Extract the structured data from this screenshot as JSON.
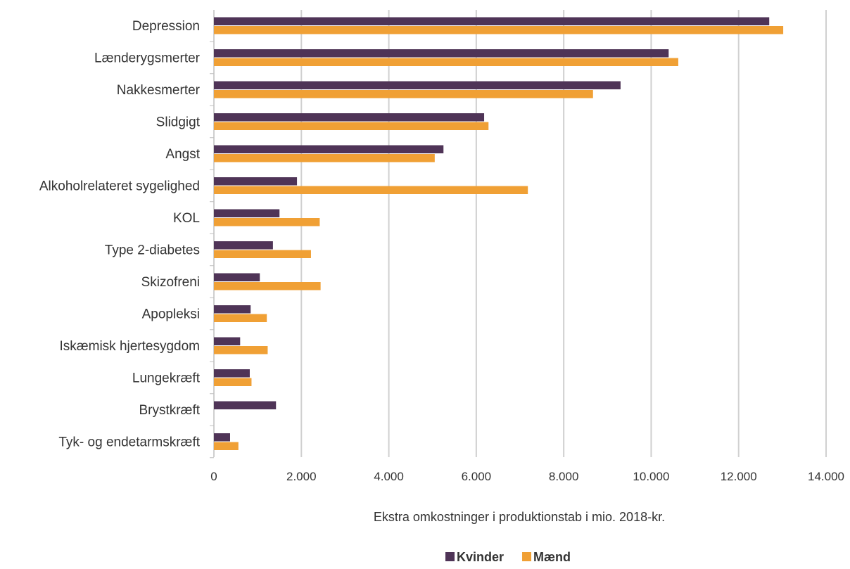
{
  "chart_data": {
    "type": "bar",
    "orientation": "horizontal",
    "categories": [
      "Depression",
      "Lænderygsmerter",
      "Nakkesmerter",
      "Slidgigt",
      "Angst",
      "Alkoholrelateret sygelighed",
      "KOL",
      "Type 2-diabetes",
      "Skizofreni",
      "Apopleksi",
      "Iskæmisk hjertesygdom",
      "Lungekræft",
      "Brystkræft",
      "Tyk- og endetarmskræft"
    ],
    "series": [
      {
        "name": "Kvinder",
        "color": "#4f3457",
        "values": [
          12700,
          10400,
          9300,
          6180,
          5250,
          1900,
          1500,
          1350,
          1050,
          840,
          600,
          820,
          1420,
          370
        ]
      },
      {
        "name": "Mænd",
        "color": "#f0a035",
        "values": [
          13020,
          10620,
          8670,
          6280,
          5050,
          7180,
          2420,
          2220,
          2440,
          1210,
          1230,
          860,
          0,
          560
        ]
      }
    ],
    "xlabel": "Ekstra omkostninger i produktionstab i mio. 2018-kr.",
    "xlim": [
      0,
      14000
    ],
    "xticks": [
      {
        "value": 0,
        "label": "0"
      },
      {
        "value": 2000,
        "label": "2.000"
      },
      {
        "value": 4000,
        "label": "4.000"
      },
      {
        "value": 6000,
        "label": "6.000"
      },
      {
        "value": 8000,
        "label": "8.000"
      },
      {
        "value": 10000,
        "label": "10.000"
      },
      {
        "value": 12000,
        "label": "12.000"
      },
      {
        "value": 14000,
        "label": "14.000"
      }
    ],
    "grid": "vertical",
    "legend_position": "bottom"
  }
}
